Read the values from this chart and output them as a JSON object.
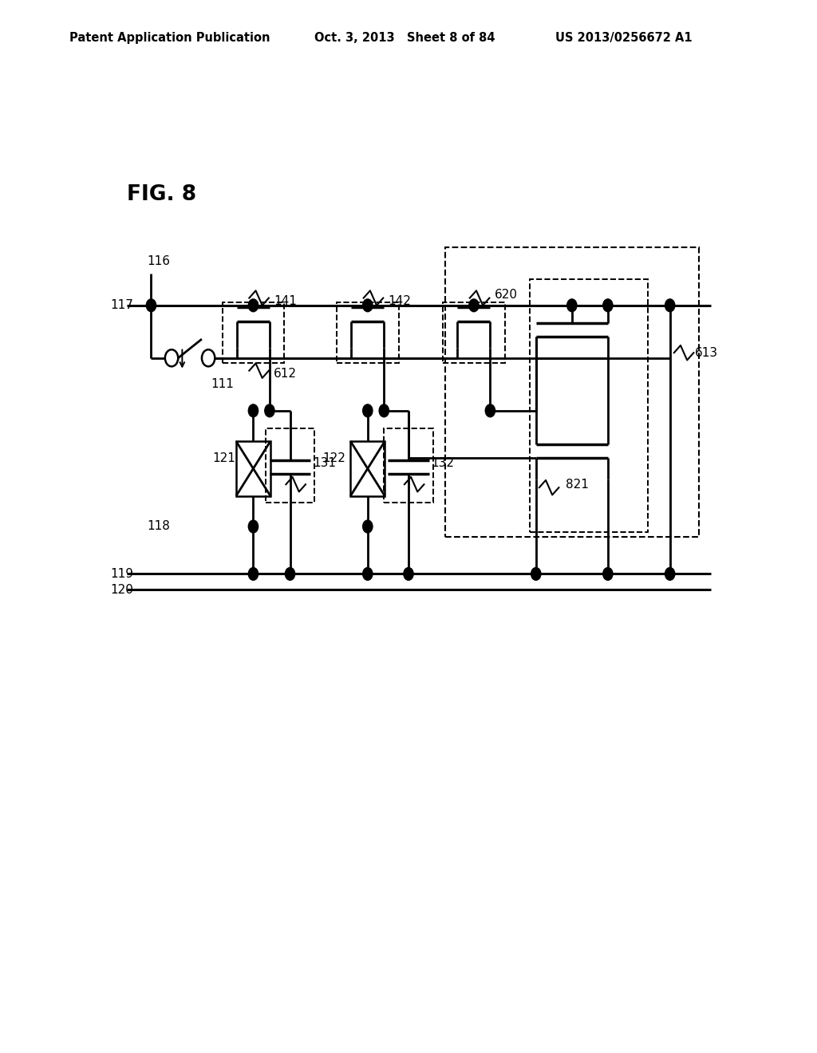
{
  "bg_color": "#ffffff",
  "line_color": "#000000",
  "header_left": "Patent Application Publication",
  "header_mid": "Oct. 3, 2013   Sheet 8 of 84",
  "header_right": "US 2013/0256672 A1",
  "fig_label": "FIG. 8"
}
